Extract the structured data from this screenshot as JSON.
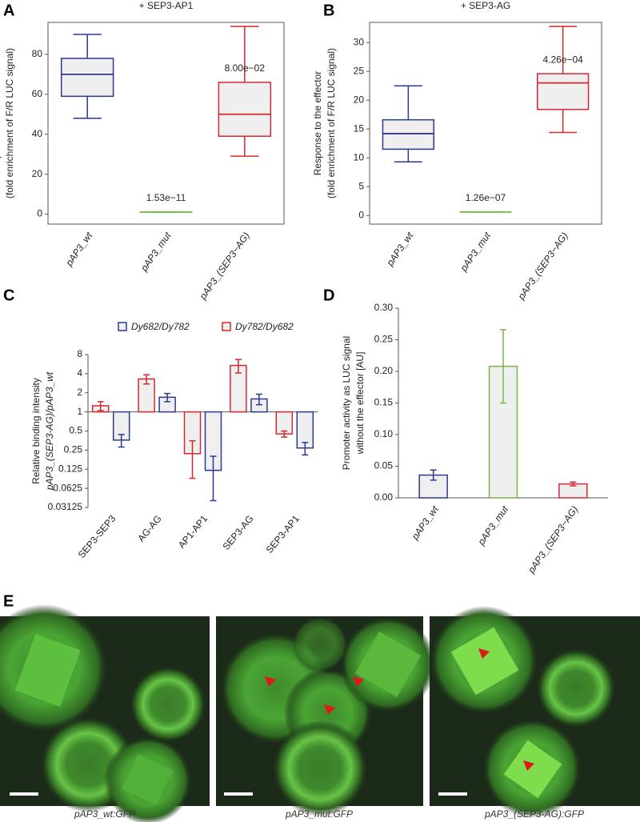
{
  "chart_data": [
    {
      "type": "box",
      "panel": "A",
      "title": "+ SEP3-AP1",
      "ylabel": [
        "Response to the effector",
        "(fold enrichment of F/R LUC signal)"
      ],
      "categories": [
        "pAP3_wt",
        "pAP3_mut",
        "pAP3_(SEP3−AG)"
      ],
      "boxes": [
        {
          "min": 48,
          "q1": 59,
          "median": 70,
          "q3": 78,
          "max": 90,
          "color": "#2b3990"
        },
        {
          "min": 1,
          "q1": 1,
          "median": 1,
          "q3": 1,
          "max": 1,
          "color": "#7ab648",
          "p_value": "1.53e−11"
        },
        {
          "min": 29,
          "q1": 39,
          "median": 50,
          "q3": 66,
          "max": 94,
          "color": "#d7282f",
          "p_value": "8.00e−02"
        }
      ],
      "ylim": [
        -5,
        96
      ],
      "yticks": [
        0,
        20,
        40,
        60,
        80
      ]
    },
    {
      "type": "box",
      "panel": "B",
      "title": "+ SEP3-AG",
      "ylabel": [
        "Response to the effector",
        "(fold enrichment of F/R LUC signal)"
      ],
      "categories": [
        "pAP3_wt",
        "pAP3_mut",
        "pAP3_(SEP3−AG)"
      ],
      "boxes": [
        {
          "min": 9.3,
          "q1": 11.5,
          "median": 14.2,
          "q3": 16.6,
          "max": 22.5,
          "color": "#2b3990"
        },
        {
          "min": 0.6,
          "q1": 0.6,
          "median": 0.6,
          "q3": 0.6,
          "max": 0.6,
          "color": "#7ab648",
          "p_value": "1.26e−07"
        },
        {
          "min": 14.4,
          "q1": 18.4,
          "median": 23.0,
          "q3": 24.6,
          "max": 32.8,
          "color": "#d7282f",
          "p_value": "4.26e−04"
        }
      ],
      "ylim": [
        -1.5,
        33.5
      ],
      "yticks": [
        0,
        5,
        10,
        15,
        20,
        25,
        30
      ]
    },
    {
      "type": "bar",
      "panel": "C",
      "yscale": "log",
      "base": 1,
      "ylabel": [
        "Relative binding intensity",
        "pAP3_(SEP3-AG)/pAP3_wt"
      ],
      "categories": [
        "SEP3-SEP3",
        "AG-AG",
        "AP1-AP1",
        "SEP3-AG",
        "SEP3-AP1"
      ],
      "series": [
        {
          "name": "Dy682/Dy782",
          "color": "#2b3990",
          "values": [
            0.36,
            1.7,
            0.12,
            1.6,
            0.27
          ],
          "errors": [
            0.08,
            0.25,
            0.08,
            0.3,
            0.06
          ]
        },
        {
          "name": "Dy782/Dy682",
          "color": "#d7282f",
          "values": [
            1.25,
            3.3,
            0.22,
            5.4,
            0.45
          ],
          "errors": [
            0.2,
            0.55,
            0.13,
            1.3,
            0.05
          ]
        }
      ],
      "ylim": [
        0.03125,
        8
      ],
      "yticks": [
        8,
        4,
        2,
        1,
        0.5,
        0.25,
        0.125,
        0.0625,
        0.03125
      ]
    },
    {
      "type": "bar",
      "panel": "D",
      "ylabel": [
        "Promoter activity as LUC signal",
        "without the effector [AU]"
      ],
      "categories": [
        "pAP3_wt",
        "pAP3_mut",
        "pAP3_(SEP3−AG)"
      ],
      "values": [
        0.036,
        0.208,
        0.022
      ],
      "errors": [
        0.008,
        0.058,
        0.003
      ],
      "colors": [
        "#2b3990",
        "#7ab648",
        "#d7282f"
      ],
      "ylim": [
        0,
        0.3
      ],
      "yticks": [
        {
          "value": 0,
          "label": "0.00"
        },
        0.05,
        {
          "value": 0.1,
          "label": "0.10"
        },
        0.15,
        {
          "value": 0.2,
          "label": "0.20"
        },
        0.25,
        {
          "value": 0.3,
          "label": "0.30"
        }
      ]
    }
  ],
  "images": {
    "panel": "E",
    "captions": [
      "pAP3_wt:GFP",
      "pAP3_mut:GFP",
      "pAP3_(SEP3-AG):GFP"
    ]
  }
}
